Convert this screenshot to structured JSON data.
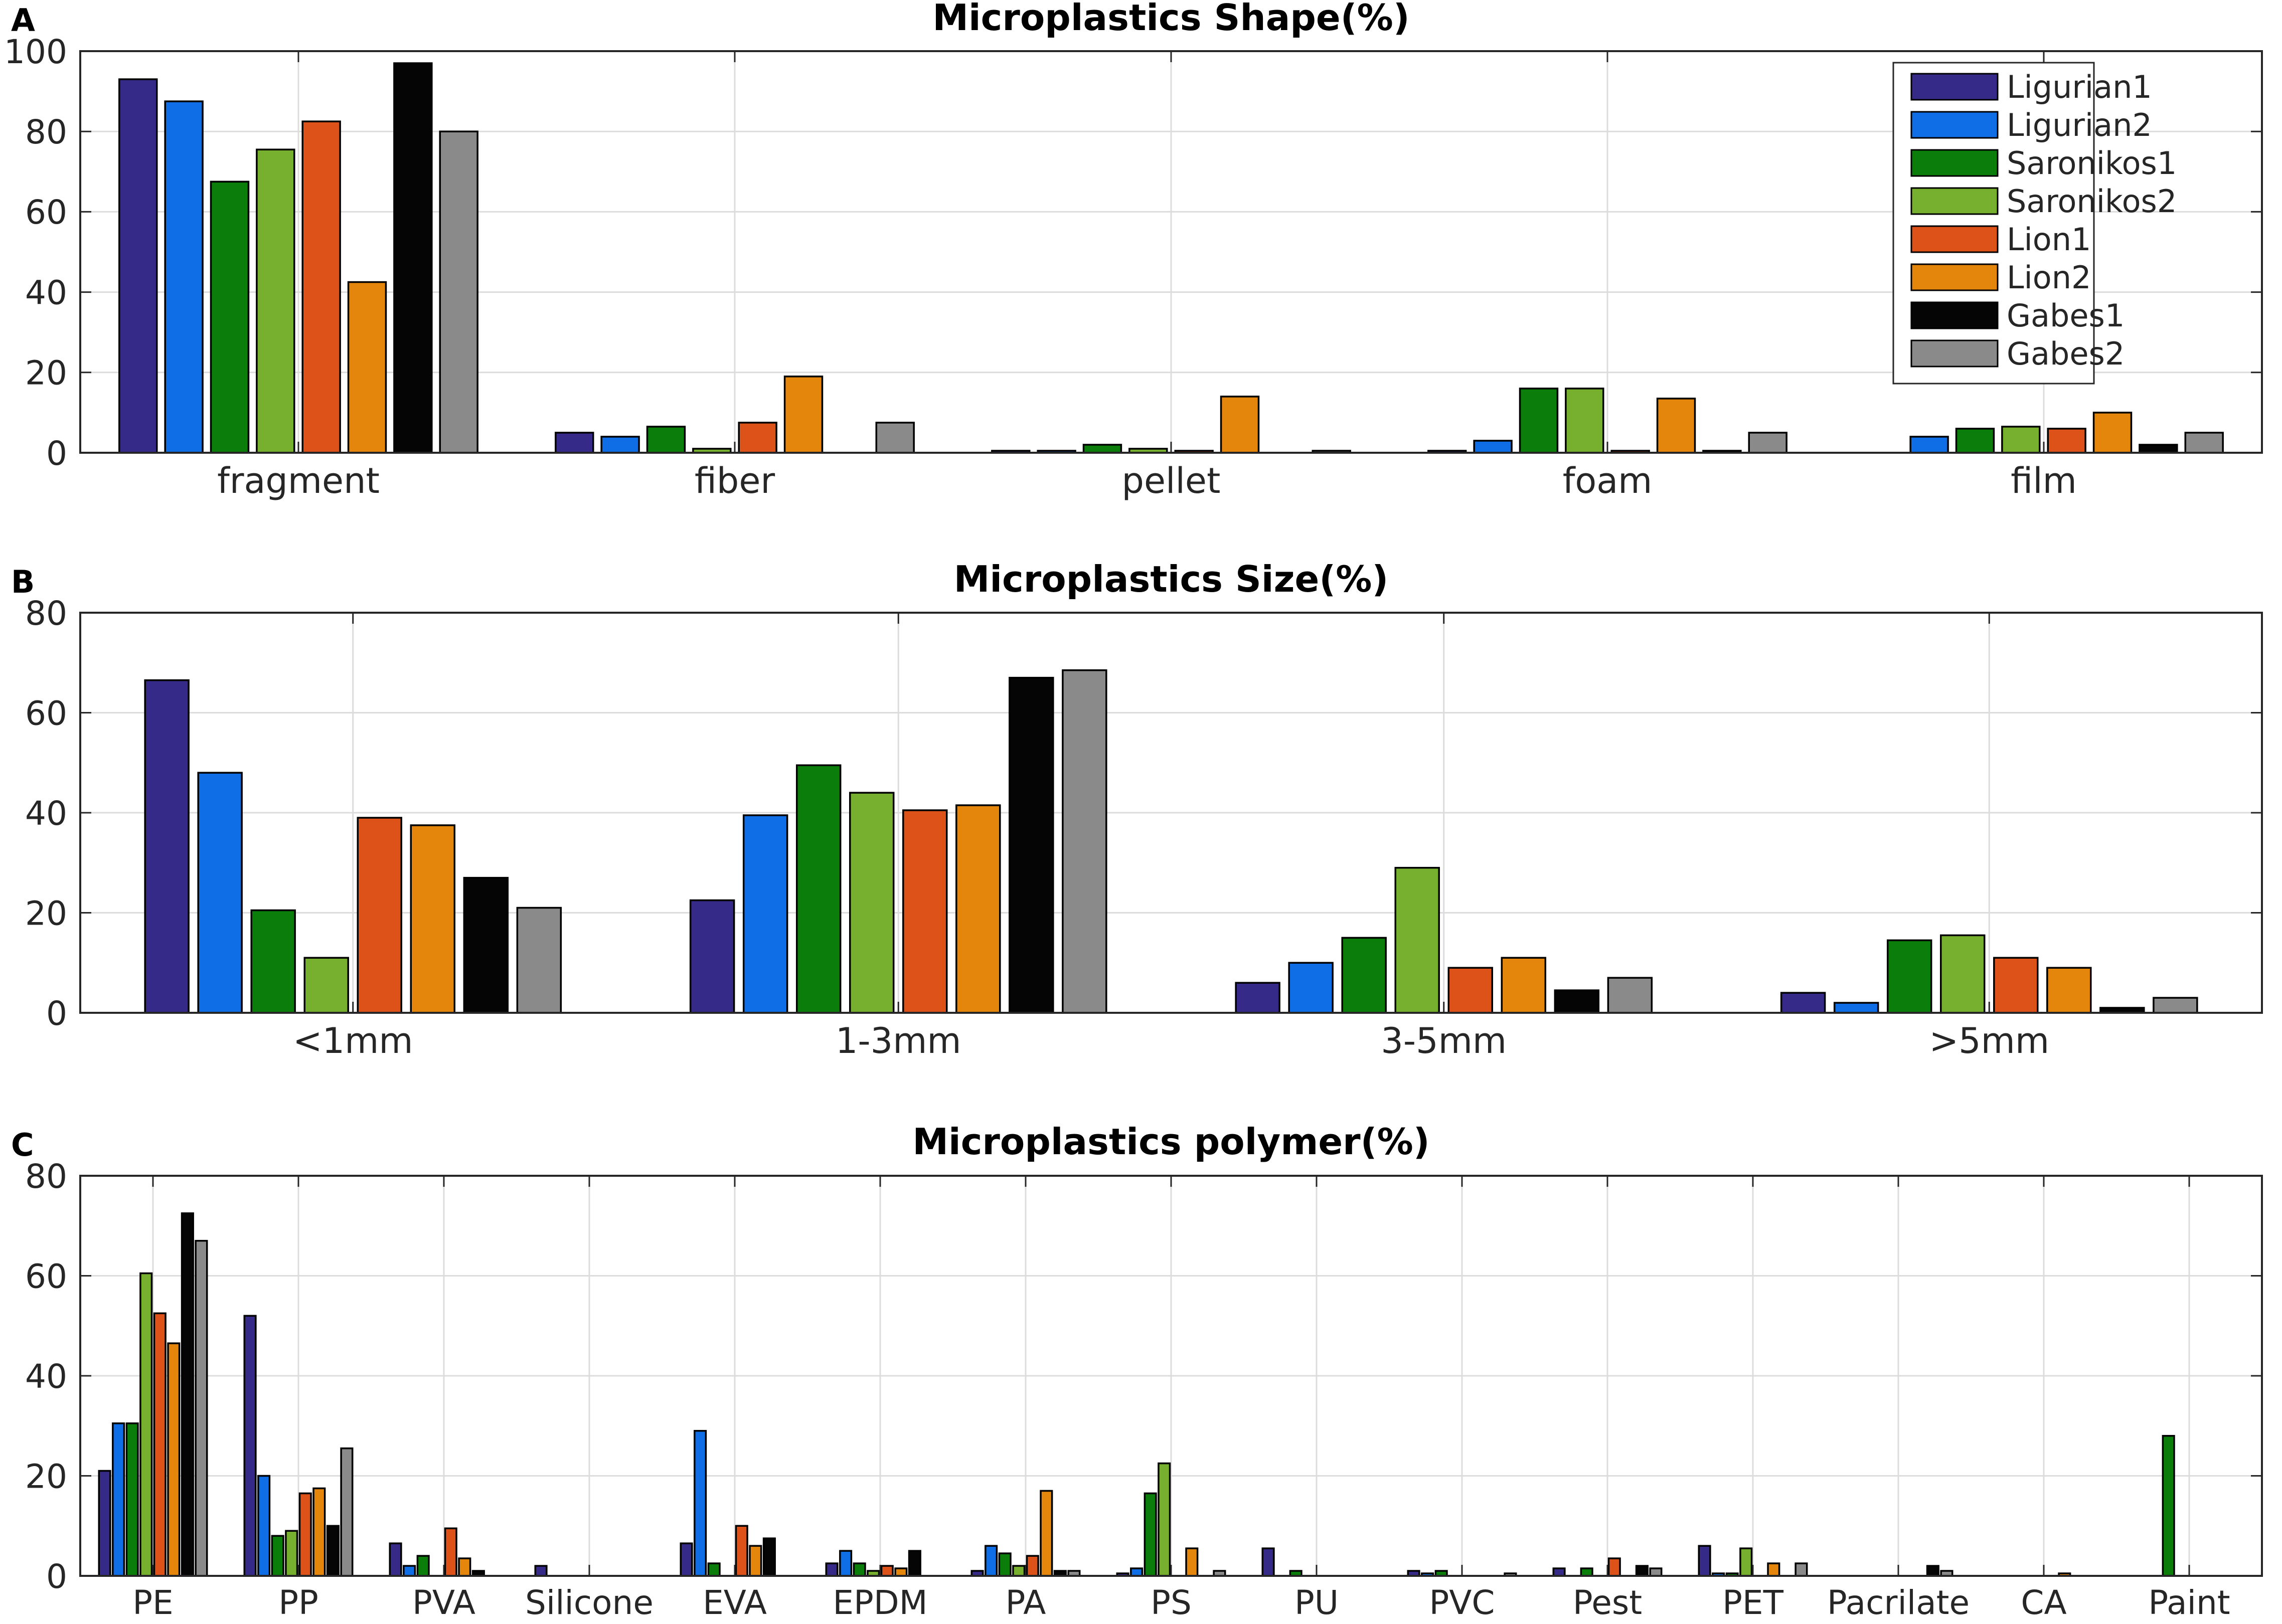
{
  "legend_series": [
    "Ligurian1",
    "Ligurian2",
    "Saronikos1",
    "Saronikos2",
    "Lion1",
    "Lion2",
    "Gabes1",
    "Gabes2"
  ],
  "colors": [
    "#352a87",
    "#0f6ee6",
    "#0a7d0a",
    "#77b02f",
    "#dd5219",
    "#e5860c",
    "#050505",
    "#8a8a8a"
  ],
  "chart_data": [
    {
      "panel_label": "A",
      "type": "bar",
      "title": "Microplastics Shape(%)",
      "xlabel": "",
      "ylabel": "",
      "ylim": [
        0,
        100
      ],
      "yticks": [
        "0",
        "20",
        "40",
        "60",
        "80",
        "100"
      ],
      "grid": true,
      "legend": "top-right",
      "categories": [
        "fragment",
        "fiber",
        "pellet",
        "foam",
        "film"
      ],
      "series": [
        {
          "name": "Ligurian1",
          "values": [
            93,
            5,
            0.5,
            0.5,
            0
          ]
        },
        {
          "name": "Ligurian2",
          "values": [
            87.5,
            4,
            0.5,
            3,
            4
          ]
        },
        {
          "name": "Saronikos1",
          "values": [
            67.5,
            6.5,
            2,
            16,
            6
          ]
        },
        {
          "name": "Saronikos2",
          "values": [
            75.5,
            1,
            1,
            16,
            6.5
          ]
        },
        {
          "name": "Lion1",
          "values": [
            82.5,
            7.5,
            0.5,
            0.5,
            6
          ]
        },
        {
          "name": "Lion2",
          "values": [
            42.5,
            19,
            14,
            13.5,
            10
          ]
        },
        {
          "name": "Gabes1",
          "values": [
            97,
            0,
            0,
            0.5,
            2
          ]
        },
        {
          "name": "Gabes2",
          "values": [
            80,
            7.5,
            0.5,
            5,
            5
          ]
        }
      ]
    },
    {
      "panel_label": "B",
      "type": "bar",
      "title": "Microplastics Size(%)",
      "xlabel": "",
      "ylabel": "",
      "ylim": [
        0,
        80
      ],
      "yticks": [
        "0",
        "20",
        "40",
        "60",
        "80"
      ],
      "grid": true,
      "categories": [
        "<1mm",
        "1-3mm",
        "3-5mm",
        ">5mm"
      ],
      "series": [
        {
          "name": "Ligurian1",
          "values": [
            66.5,
            22.5,
            6,
            4
          ]
        },
        {
          "name": "Ligurian2",
          "values": [
            48,
            39.5,
            10,
            2
          ]
        },
        {
          "name": "Saronikos1",
          "values": [
            20.5,
            49.5,
            15,
            14.5
          ]
        },
        {
          "name": "Saronikos2",
          "values": [
            11,
            44,
            29,
            15.5
          ]
        },
        {
          "name": "Lion1",
          "values": [
            39,
            40.5,
            9,
            11
          ]
        },
        {
          "name": "Lion2",
          "values": [
            37.5,
            41.5,
            11,
            9
          ]
        },
        {
          "name": "Gabes1",
          "values": [
            27,
            67,
            4.5,
            1
          ]
        },
        {
          "name": "Gabes2",
          "values": [
            21,
            68.5,
            7,
            3
          ]
        }
      ]
    },
    {
      "panel_label": "C",
      "type": "bar",
      "title": "Microplastics polymer(%)",
      "xlabel": "",
      "ylabel": "",
      "ylim": [
        0,
        80
      ],
      "yticks": [
        "0",
        "20",
        "40",
        "60",
        "80"
      ],
      "grid": true,
      "categories": [
        "PE",
        "PP",
        "PVA",
        "Silicone",
        "EVA",
        "EPDM",
        "PA",
        "PS",
        "PU",
        "PVC",
        "Pest",
        "PET",
        "Pacrilate",
        "CA",
        "Paint"
      ],
      "series": [
        {
          "name": "Ligurian1",
          "values": [
            21,
            52,
            6.5,
            2,
            6.5,
            2.5,
            1,
            0.5,
            5.5,
            1,
            1.5,
            6,
            0,
            0,
            0
          ]
        },
        {
          "name": "Ligurian2",
          "values": [
            30.5,
            20,
            2,
            0,
            29,
            5,
            6,
            1.5,
            0,
            0.5,
            0,
            0.5,
            0,
            0,
            0
          ]
        },
        {
          "name": "Saronikos1",
          "values": [
            30.5,
            8,
            4,
            0,
            2.5,
            2.5,
            4.5,
            16.5,
            1,
            1,
            1.5,
            0.5,
            0,
            0,
            28
          ]
        },
        {
          "name": "Saronikos2",
          "values": [
            60.5,
            9,
            0,
            0,
            0,
            1,
            2,
            22.5,
            0,
            0,
            0,
            5.5,
            0,
            0,
            0
          ]
        },
        {
          "name": "Lion1",
          "values": [
            52.5,
            16.5,
            9.5,
            0,
            10,
            2,
            4,
            0,
            0,
            0,
            3.5,
            0,
            0,
            0,
            0
          ]
        },
        {
          "name": "Lion2",
          "values": [
            46.5,
            17.5,
            3.5,
            0,
            6,
            1.5,
            17,
            5.5,
            0,
            0,
            0,
            2.5,
            0,
            0.5,
            0
          ]
        },
        {
          "name": "Gabes1",
          "values": [
            72.5,
            10,
            1,
            0,
            7.5,
            5,
            1,
            0,
            0,
            0,
            2,
            0,
            2,
            0,
            0
          ]
        },
        {
          "name": "Gabes2",
          "values": [
            67,
            25.5,
            0,
            0,
            0,
            0,
            1,
            1,
            0,
            0.5,
            1.5,
            2.5,
            1,
            0,
            0
          ]
        }
      ]
    }
  ]
}
